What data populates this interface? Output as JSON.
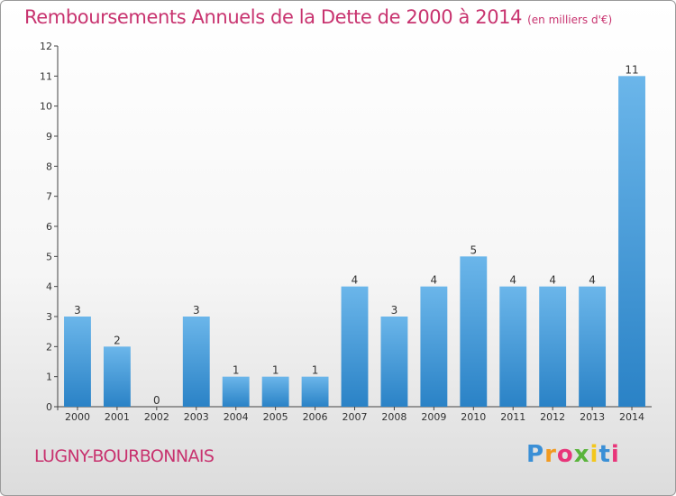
{
  "title": "Remboursements Annuels de la Dette de 2000 à 2014",
  "subtitle": "(en milliers d'€)",
  "place_name": "LUGNY-BOURBONNAIS",
  "logo": {
    "letters": [
      "P",
      "r",
      "o",
      "x",
      "i",
      "t",
      "i"
    ],
    "colors": [
      "#3a8fd6",
      "#f29a1f",
      "#e8357a",
      "#5ab43c",
      "#f3c71c",
      "#3a8fd6",
      "#e8357a"
    ]
  },
  "colors": {
    "bar_light": "#6bb6ea",
    "bar_dark": "#2a82c6",
    "title": "#c8336f"
  },
  "chart_data": {
    "type": "bar",
    "categories": [
      "2000",
      "2001",
      "2002",
      "2003",
      "2004",
      "2005",
      "2006",
      "2007",
      "2008",
      "2009",
      "2010",
      "2011",
      "2012",
      "2013",
      "2014"
    ],
    "values": [
      3,
      2,
      0,
      3,
      1,
      1,
      1,
      4,
      3,
      4,
      5,
      4,
      4,
      4,
      11
    ],
    "data_labels": [
      "3",
      "2",
      "0",
      "3",
      "1",
      "1",
      "1",
      "4",
      "3",
      "4",
      "5",
      "4",
      "4",
      "4",
      "11"
    ],
    "yticks": [
      "0",
      "1",
      "2",
      "3",
      "4",
      "5",
      "6",
      "7",
      "8",
      "9",
      "10",
      "11",
      "12"
    ],
    "ylim": [
      0,
      12
    ],
    "grid": false,
    "legend": "none"
  }
}
